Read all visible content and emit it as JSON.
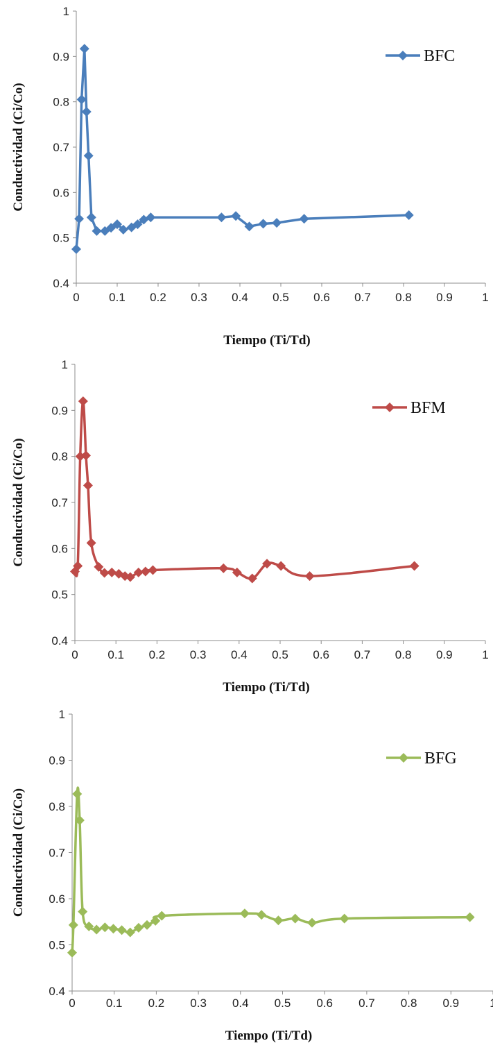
{
  "chart_data": [
    {
      "type": "line",
      "xlabel": "Tiempo (Ti/Td)",
      "ylabel": "Conductividad (Ci/Co)",
      "xlim": [
        0,
        1
      ],
      "ylim": [
        0.4,
        1
      ],
      "xticks": [
        "0",
        "0.1",
        "0.2",
        "0.3",
        "0.4",
        "0.5",
        "0.6",
        "0.7",
        "0.8",
        "0.9",
        "1"
      ],
      "yticks": [
        "0.4",
        "0.5",
        "0.6",
        "0.7",
        "0.8",
        "0.9",
        "1"
      ],
      "grid": false,
      "legend_position": "top-right",
      "marker": "diamond",
      "smooth": false,
      "series": [
        {
          "name": "BFC",
          "color": "#4a7ebb",
          "x": [
            0.0,
            0.007,
            0.013,
            0.02,
            0.025,
            0.03,
            0.037,
            0.05,
            0.07,
            0.085,
            0.1,
            0.115,
            0.135,
            0.15,
            0.165,
            0.182,
            0.355,
            0.39,
            0.423,
            0.457,
            0.49,
            0.557,
            0.813
          ],
          "y": [
            0.475,
            0.542,
            0.805,
            0.917,
            0.778,
            0.681,
            0.545,
            0.515,
            0.515,
            0.522,
            0.53,
            0.518,
            0.523,
            0.53,
            0.54,
            0.545,
            0.545,
            0.548,
            0.525,
            0.531,
            0.533,
            0.542,
            0.55
          ]
        }
      ]
    },
    {
      "type": "line",
      "xlabel": "Tiempo (Ti/Td)",
      "ylabel": "Conductividad (Ci/Co)",
      "xlim": [
        0,
        1
      ],
      "ylim": [
        0.4,
        1
      ],
      "xticks": [
        "0",
        "0.1",
        "0.2",
        "0.3",
        "0.4",
        "0.5",
        "0.6",
        "0.7",
        "0.8",
        "0.9",
        "1"
      ],
      "yticks": [
        "0.4",
        "0.5",
        "0.6",
        "0.7",
        "0.8",
        "0.9",
        "1"
      ],
      "grid": false,
      "legend_position": "top-right",
      "marker": "diamond",
      "smooth": true,
      "series": [
        {
          "name": "BFM",
          "color": "#be4b48",
          "x": [
            0.0,
            0.007,
            0.013,
            0.02,
            0.027,
            0.032,
            0.04,
            0.058,
            0.072,
            0.09,
            0.107,
            0.122,
            0.135,
            0.155,
            0.172,
            0.19,
            0.362,
            0.395,
            0.432,
            0.468,
            0.502,
            0.572,
            0.827
          ],
          "y": [
            0.55,
            0.562,
            0.8,
            0.92,
            0.802,
            0.737,
            0.612,
            0.56,
            0.547,
            0.548,
            0.545,
            0.54,
            0.538,
            0.548,
            0.55,
            0.553,
            0.557,
            0.548,
            0.535,
            0.567,
            0.562,
            0.54,
            0.562
          ]
        }
      ]
    },
    {
      "type": "line",
      "xlabel": "Tiempo (Ti/Td)",
      "ylabel": "Conductividad (Ci/Co)",
      "xlim": [
        0,
        1
      ],
      "ylim": [
        0.4,
        1
      ],
      "xticks": [
        "0",
        "0.1",
        "0.2",
        "0.3",
        "0.4",
        "0.5",
        "0.6",
        "0.7",
        "0.8",
        "0.9",
        "1"
      ],
      "yticks": [
        "0.4",
        "0.5",
        "0.6",
        "0.7",
        "0.8",
        "0.9",
        "1"
      ],
      "grid": false,
      "legend_position": "top-right",
      "marker": "diamond",
      "smooth": true,
      "series": [
        {
          "name": "BFG",
          "color": "#9bbb59",
          "x": [
            0.0,
            0.003,
            0.012,
            0.018,
            0.025,
            0.04,
            0.058,
            0.078,
            0.098,
            0.118,
            0.138,
            0.158,
            0.178,
            0.198,
            0.213,
            0.41,
            0.45,
            0.49,
            0.53,
            0.57,
            0.647,
            0.945
          ],
          "y": [
            0.483,
            0.543,
            0.827,
            0.77,
            0.572,
            0.54,
            0.533,
            0.538,
            0.535,
            0.532,
            0.527,
            0.537,
            0.543,
            0.552,
            0.563,
            0.568,
            0.565,
            0.553,
            0.557,
            0.548,
            0.557,
            0.56
          ]
        }
      ]
    }
  ]
}
